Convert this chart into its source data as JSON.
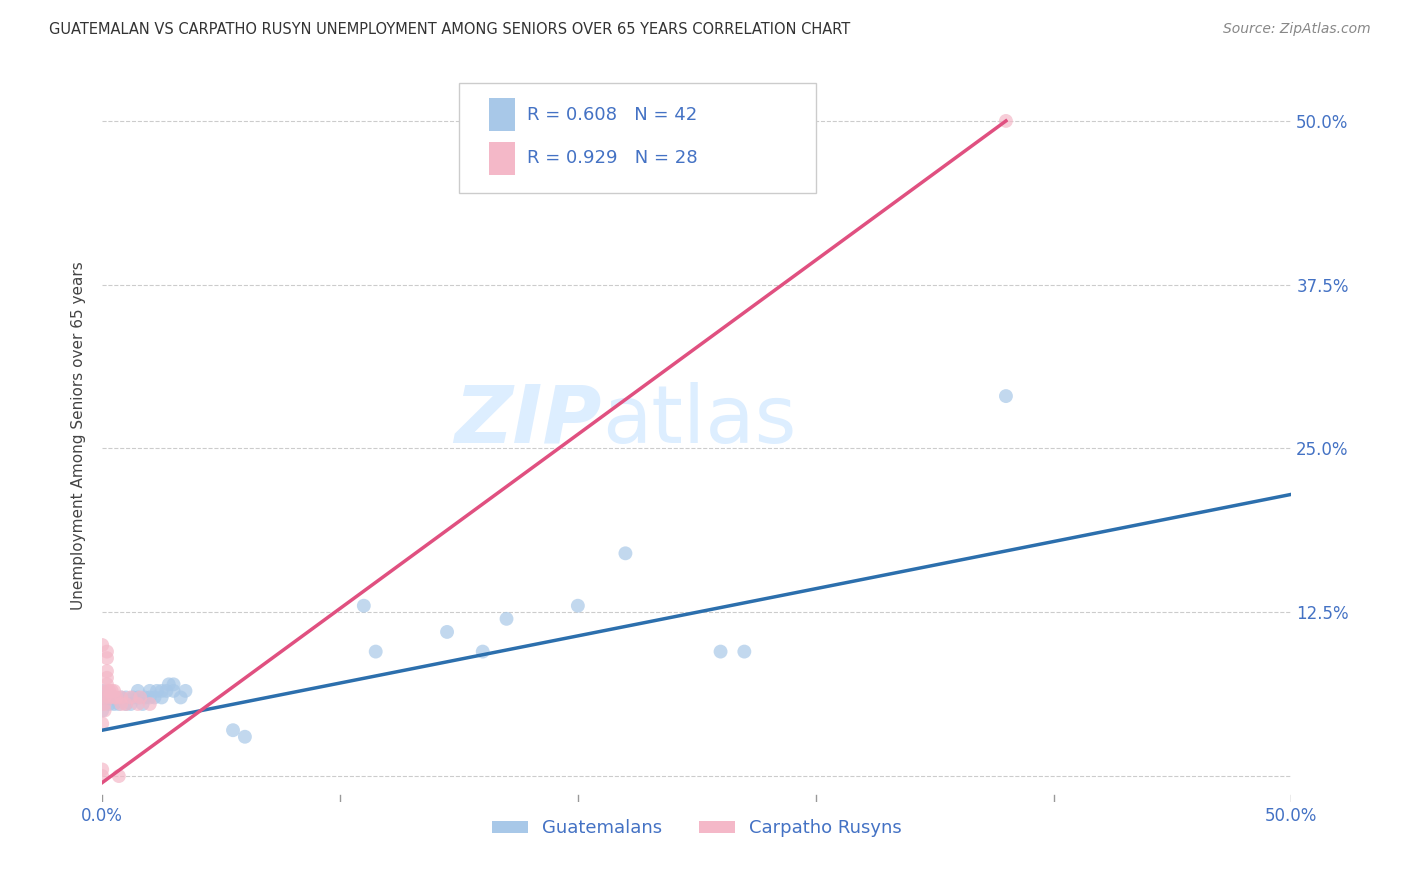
{
  "title": "GUATEMALAN VS CARPATHO RUSYN UNEMPLOYMENT AMONG SENIORS OVER 65 YEARS CORRELATION CHART",
  "source": "Source: ZipAtlas.com",
  "ylabel": "Unemployment Among Seniors over 65 years",
  "xlim": [
    0.0,
    0.5
  ],
  "ylim": [
    -0.02,
    0.54
  ],
  "xticks": [
    0.0,
    0.1,
    0.2,
    0.3,
    0.4,
    0.5
  ],
  "yticks": [
    0.0,
    0.125,
    0.25,
    0.375,
    0.5
  ],
  "xticklabels": [
    "0.0%",
    "",
    "",
    "",
    "",
    "50.0%"
  ],
  "right_yticklabels": [
    "",
    "12.5%",
    "25.0%",
    "37.5%",
    "50.0%"
  ],
  "guatemalan_R": 0.608,
  "guatemalan_N": 42,
  "carpatho_R": 0.929,
  "carpatho_N": 28,
  "blue_color": "#a8c8e8",
  "blue_line_color": "#2c6fad",
  "pink_color": "#f4b8c8",
  "pink_line_color": "#e05080",
  "legend_text_color": "#4472c4",
  "axis_label_color": "#4472c4",
  "watermark_color": "#ddeeff",
  "guatemalan_points": [
    [
      0.0,
      0.05
    ],
    [
      0.0,
      0.055
    ],
    [
      0.0,
      0.06
    ],
    [
      0.0,
      0.065
    ],
    [
      0.003,
      0.055
    ],
    [
      0.003,
      0.06
    ],
    [
      0.005,
      0.055
    ],
    [
      0.005,
      0.06
    ],
    [
      0.007,
      0.055
    ],
    [
      0.008,
      0.06
    ],
    [
      0.01,
      0.055
    ],
    [
      0.01,
      0.06
    ],
    [
      0.012,
      0.055
    ],
    [
      0.013,
      0.06
    ],
    [
      0.015,
      0.06
    ],
    [
      0.015,
      0.065
    ],
    [
      0.017,
      0.055
    ],
    [
      0.018,
      0.06
    ],
    [
      0.02,
      0.06
    ],
    [
      0.02,
      0.065
    ],
    [
      0.022,
      0.06
    ],
    [
      0.023,
      0.065
    ],
    [
      0.025,
      0.06
    ],
    [
      0.025,
      0.065
    ],
    [
      0.027,
      0.065
    ],
    [
      0.028,
      0.07
    ],
    [
      0.03,
      0.065
    ],
    [
      0.03,
      0.07
    ],
    [
      0.033,
      0.06
    ],
    [
      0.035,
      0.065
    ],
    [
      0.055,
      0.035
    ],
    [
      0.06,
      0.03
    ],
    [
      0.11,
      0.13
    ],
    [
      0.115,
      0.095
    ],
    [
      0.145,
      0.11
    ],
    [
      0.16,
      0.095
    ],
    [
      0.17,
      0.12
    ],
    [
      0.2,
      0.13
    ],
    [
      0.22,
      0.17
    ],
    [
      0.26,
      0.095
    ],
    [
      0.27,
      0.095
    ],
    [
      0.38,
      0.29
    ]
  ],
  "carpatho_points": [
    [
      0.0,
      0.0
    ],
    [
      0.0,
      0.005
    ],
    [
      0.0,
      0.04
    ],
    [
      0.001,
      0.05
    ],
    [
      0.001,
      0.055
    ],
    [
      0.001,
      0.06
    ],
    [
      0.002,
      0.065
    ],
    [
      0.002,
      0.07
    ],
    [
      0.002,
      0.075
    ],
    [
      0.002,
      0.08
    ],
    [
      0.002,
      0.09
    ],
    [
      0.002,
      0.095
    ],
    [
      0.003,
      0.06
    ],
    [
      0.003,
      0.065
    ],
    [
      0.004,
      0.065
    ],
    [
      0.005,
      0.06
    ],
    [
      0.005,
      0.065
    ],
    [
      0.006,
      0.06
    ],
    [
      0.007,
      0.0
    ],
    [
      0.008,
      0.055
    ],
    [
      0.008,
      0.06
    ],
    [
      0.01,
      0.055
    ],
    [
      0.012,
      0.06
    ],
    [
      0.015,
      0.055
    ],
    [
      0.016,
      0.06
    ],
    [
      0.02,
      0.055
    ],
    [
      0.0,
      0.1
    ],
    [
      0.38,
      0.5
    ]
  ],
  "blue_line_endpoints": [
    [
      0.0,
      0.035
    ],
    [
      0.5,
      0.215
    ]
  ],
  "pink_line_endpoints": [
    [
      0.0,
      -0.005
    ],
    [
      0.38,
      0.5
    ]
  ]
}
